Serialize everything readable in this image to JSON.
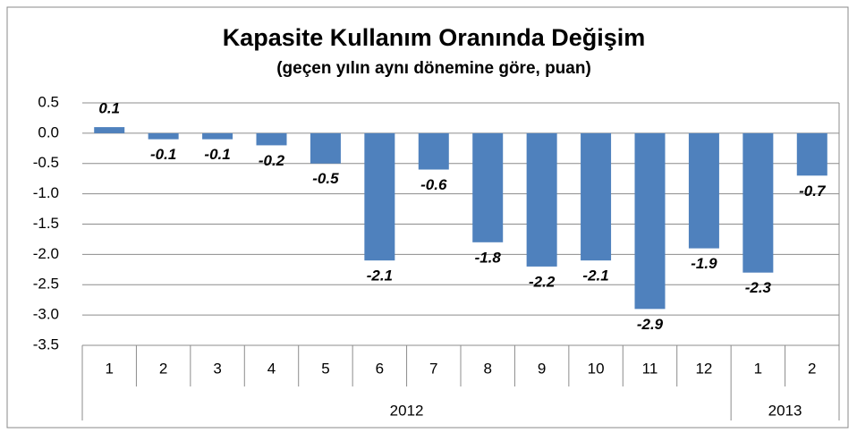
{
  "chart_data": {
    "type": "bar",
    "title": "Kapasite Kullanım Oranında Değişim",
    "subtitle": "(geçen yılın aynı dönemine göre, puan)",
    "groups": [
      {
        "name": "2012",
        "categories": [
          "1",
          "2",
          "3",
          "4",
          "5",
          "6",
          "7",
          "8",
          "9",
          "10",
          "11",
          "12"
        ]
      },
      {
        "name": "2013",
        "categories": [
          "1",
          "2"
        ]
      }
    ],
    "values": [
      0.1,
      -0.1,
      -0.1,
      -0.2,
      -0.5,
      -2.1,
      -0.6,
      -1.8,
      -2.2,
      -2.1,
      -2.9,
      -1.9,
      -2.3,
      -0.7
    ],
    "color": "#4f81bd",
    "ylim": [
      -3.5,
      0.5
    ],
    "yticks": [
      0.5,
      {
        "value": 0,
        "label": "0.0"
      },
      -0.5,
      {
        "value": -1,
        "label": "-1.0"
      },
      -1.5,
      {
        "value": -2,
        "label": "-2.0"
      },
      -2.5,
      {
        "value": -3,
        "label": "-3.0"
      },
      -3.5
    ],
    "grid": true
  }
}
